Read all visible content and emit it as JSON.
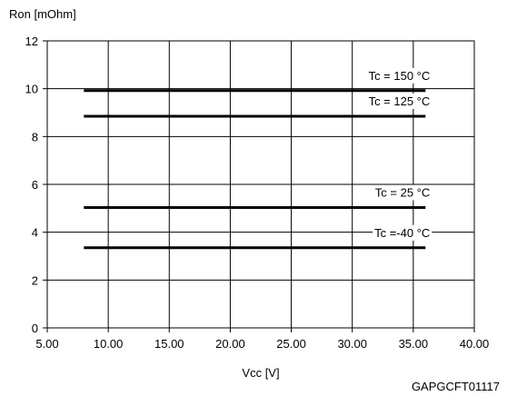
{
  "chart_data": {
    "type": "line",
    "ylabel": "Ron [mOhm]",
    "xlabel": "Vcc [V]",
    "figure_code": "GAPGCFT01117",
    "xlim": [
      5,
      40
    ],
    "ylim": [
      0,
      12
    ],
    "x_ticks": [
      5,
      10,
      15,
      20,
      25,
      30,
      35,
      40
    ],
    "x_tick_labels": [
      "5.00",
      "10.00",
      "15.00",
      "20.00",
      "25.00",
      "30.00",
      "35.00",
      "40.00"
    ],
    "y_ticks": [
      0,
      2,
      4,
      6,
      8,
      10,
      12
    ],
    "y_tick_labels": [
      "0",
      "2",
      "4",
      "6",
      "8",
      "10",
      "12"
    ],
    "grid": true,
    "series": [
      {
        "name": "Tc = 150 °C",
        "x": [
          8,
          36
        ],
        "y": [
          9.92,
          9.92
        ]
      },
      {
        "name": "Tc = 125 °C",
        "x": [
          8,
          36
        ],
        "y": [
          8.85,
          8.85
        ]
      },
      {
        "name": "Tc = 25 °C",
        "x": [
          8,
          36
        ],
        "y": [
          5.03,
          5.03
        ]
      },
      {
        "name": "Tc =-40  °C",
        "x": [
          8,
          36
        ],
        "y": [
          3.35,
          3.35
        ]
      }
    ],
    "line_color": "#000000"
  }
}
